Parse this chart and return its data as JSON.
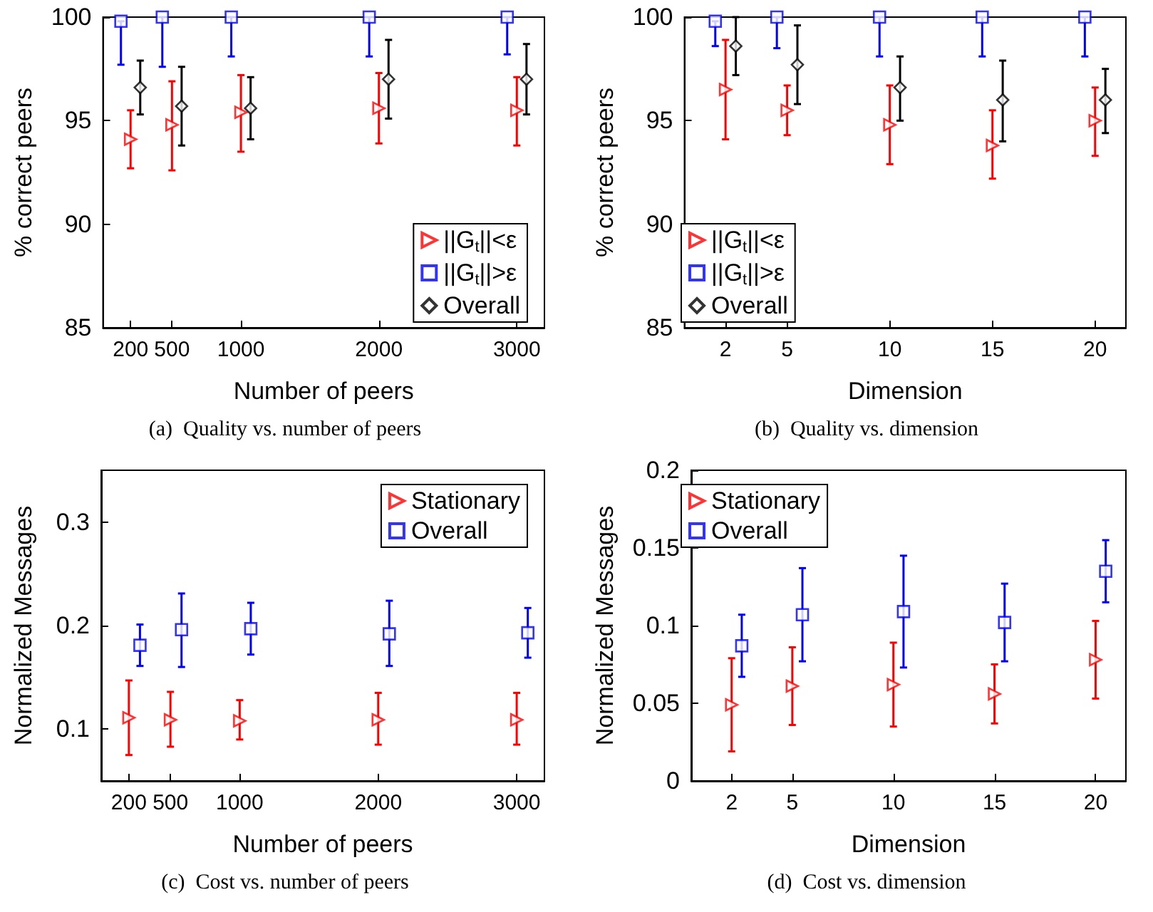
{
  "chart_data": [
    {
      "type": "scatter",
      "title": "(a)  Quality vs. number of peers",
      "xlabel": "Number of peers",
      "ylabel": "% correct peers",
      "x": [
        200,
        500,
        1000,
        2000,
        3000
      ],
      "xlim": [
        0,
        3200
      ],
      "xticks": [
        200,
        500,
        1000,
        2000,
        3000
      ],
      "ylim": [
        85,
        100
      ],
      "yticks": [
        85,
        90,
        95,
        100
      ],
      "legend": "bottom right",
      "grid": false,
      "series": [
        {
          "name": "||G$_{t}$||<ε",
          "color": "#ff0000",
          "marker": "triangle",
          "values": [
            94.1,
            94.8,
            95.4,
            95.6,
            95.5
          ],
          "errors": [
            [
              92.7,
              95.5
            ],
            [
              92.6,
              96.9
            ],
            [
              93.5,
              97.2
            ],
            [
              93.9,
              97.3
            ],
            [
              93.8,
              97.1
            ]
          ]
        },
        {
          "name": "||G$_{t}$||>ε",
          "color": "#0000ff",
          "marker": "square",
          "x": [
            130,
            430,
            930,
            1930,
            2930
          ],
          "values": [
            99.8,
            100,
            100,
            100,
            100
          ],
          "errors": [
            [
              97.7,
              99.8
            ],
            [
              97.6,
              100
            ],
            [
              98.1,
              100
            ],
            [
              98.1,
              100
            ],
            [
              98.2,
              100
            ]
          ]
        },
        {
          "name": "Overall",
          "color": "#000000",
          "marker": "diamond",
          "x": [
            270,
            570,
            1070,
            2070,
            3070
          ],
          "values": [
            96.6,
            95.7,
            95.6,
            97.0,
            97.0
          ],
          "errors": [
            [
              95.3,
              97.9
            ],
            [
              93.8,
              97.6
            ],
            [
              94.1,
              97.1
            ],
            [
              95.1,
              98.9
            ],
            [
              95.3,
              98.7
            ]
          ]
        }
      ]
    },
    {
      "type": "scatter",
      "title": "(b)  Quality vs. dimension",
      "xlabel": "Dimension",
      "ylabel": "% correct peers",
      "x": [
        2,
        5,
        10,
        15,
        20
      ],
      "xlim": [
        0,
        21.5
      ],
      "xticks": [
        2,
        5,
        10,
        15,
        20
      ],
      "ylim": [
        85,
        100
      ],
      "yticks": [
        85,
        90,
        95,
        100
      ],
      "legend": "bottom left",
      "grid": false,
      "series": [
        {
          "name": "||G$_{t}$||<ε",
          "color": "#ff0000",
          "marker": "triangle",
          "values": [
            96.5,
            95.5,
            94.8,
            93.8,
            95.0
          ],
          "errors": [
            [
              94.1,
              98.9
            ],
            [
              94.3,
              96.7
            ],
            [
              92.9,
              96.7
            ],
            [
              92.2,
              95.5
            ],
            [
              93.3,
              96.6
            ]
          ]
        },
        {
          "name": "||G$_{t}$||>ε",
          "color": "#0000ff",
          "marker": "square",
          "x": [
            1.5,
            4.5,
            9.5,
            14.5,
            19.5
          ],
          "values": [
            99.8,
            100,
            100,
            100,
            100
          ],
          "errors": [
            [
              98.6,
              99.8
            ],
            [
              98.5,
              100
            ],
            [
              98.1,
              100
            ],
            [
              98.1,
              100
            ],
            [
              98.1,
              100
            ]
          ]
        },
        {
          "name": "Overall",
          "color": "#000000",
          "marker": "diamond",
          "x": [
            2.5,
            5.5,
            10.5,
            15.5,
            20.5
          ],
          "values": [
            98.6,
            97.7,
            96.6,
            96.0,
            96.0
          ],
          "errors": [
            [
              97.2,
              100
            ],
            [
              95.8,
              99.6
            ],
            [
              95.0,
              98.1
            ],
            [
              94.0,
              97.9
            ],
            [
              94.4,
              97.5
            ]
          ]
        }
      ]
    },
    {
      "type": "scatter",
      "title": "(c)  Cost vs. number of peers",
      "xlabel": "Number of peers",
      "ylabel": "Normalized Messages",
      "x": [
        200,
        500,
        1000,
        2000,
        3000
      ],
      "xlim": [
        0,
        3200
      ],
      "xticks": [
        200,
        500,
        1000,
        2000,
        3000
      ],
      "ylim": [
        0.05,
        0.35
      ],
      "yticks": [
        0.1,
        0.2,
        0.3
      ],
      "legend": "top right",
      "grid": false,
      "series": [
        {
          "name": "Stationary",
          "color": "#ff0000",
          "marker": "triangle",
          "values": [
            0.111,
            0.109,
            0.108,
            0.109,
            0.109
          ],
          "errors": [
            [
              0.075,
              0.147
            ],
            [
              0.083,
              0.136
            ],
            [
              0.09,
              0.128
            ],
            [
              0.085,
              0.135
            ],
            [
              0.085,
              0.135
            ]
          ]
        },
        {
          "name": "Overall",
          "color": "#0000ff",
          "marker": "square",
          "x": [
            280,
            580,
            1080,
            2080,
            3080
          ],
          "values": [
            0.181,
            0.196,
            0.197,
            0.192,
            0.193
          ],
          "errors": [
            [
              0.161,
              0.201
            ],
            [
              0.16,
              0.231
            ],
            [
              0.172,
              0.222
            ],
            [
              0.161,
              0.224
            ],
            [
              0.169,
              0.217
            ]
          ]
        }
      ]
    },
    {
      "type": "scatter",
      "title": "(d)  Cost vs. dimension",
      "xlabel": "Dimension",
      "ylabel": "Normalized Messages",
      "x": [
        2,
        5,
        10,
        15,
        20
      ],
      "xlim": [
        0,
        21.5
      ],
      "xticks": [
        2,
        5,
        10,
        15,
        20
      ],
      "ylim": [
        0,
        0.2
      ],
      "yticks": [
        0,
        0.05,
        0.1,
        0.15,
        0.2
      ],
      "legend": "top left",
      "grid": false,
      "series": [
        {
          "name": "Stationary",
          "color": "#ff0000",
          "marker": "triangle",
          "values": [
            0.049,
            0.061,
            0.062,
            0.056,
            0.078
          ],
          "errors": [
            [
              0.019,
              0.079
            ],
            [
              0.036,
              0.086
            ],
            [
              0.035,
              0.089
            ],
            [
              0.037,
              0.075
            ],
            [
              0.053,
              0.103
            ]
          ]
        },
        {
          "name": "Overall",
          "color": "#0000ff",
          "marker": "square",
          "x": [
            2.5,
            5.5,
            10.5,
            15.5,
            20.5
          ],
          "values": [
            0.087,
            0.107,
            0.109,
            0.102,
            0.135
          ],
          "errors": [
            [
              0.067,
              0.107
            ],
            [
              0.077,
              0.137
            ],
            [
              0.073,
              0.145
            ],
            [
              0.077,
              0.127
            ],
            [
              0.115,
              0.155
            ]
          ]
        }
      ]
    }
  ]
}
